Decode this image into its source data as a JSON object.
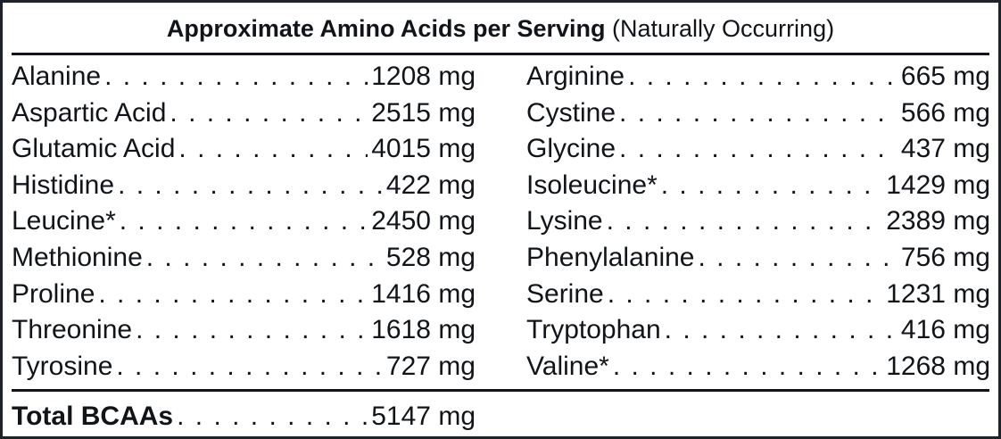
{
  "title": {
    "bold": "Approximate Amino Acids per Serving",
    "normal": "(Naturally Occurring)"
  },
  "left": [
    {
      "name": "Alanine",
      "value": "1208 mg"
    },
    {
      "name": "Aspartic Acid",
      "value": "2515 mg"
    },
    {
      "name": "Glutamic Acid",
      "value": "4015 mg"
    },
    {
      "name": "Histidine",
      "value": "422 mg"
    },
    {
      "name": "Leucine*",
      "value": "2450 mg"
    },
    {
      "name": "Methionine",
      "value": "528 mg"
    },
    {
      "name": "Proline",
      "value": "1416 mg"
    },
    {
      "name": "Threonine",
      "value": "1618 mg"
    },
    {
      "name": "Tyrosine",
      "value": "727 mg"
    }
  ],
  "right": [
    {
      "name": "Arginine",
      "value": "665 mg"
    },
    {
      "name": "Cystine",
      "value": "566 mg"
    },
    {
      "name": "Glycine",
      "value": "437 mg"
    },
    {
      "name": "Isoleucine*",
      "value": "1429 mg"
    },
    {
      "name": "Lysine",
      "value": "2389 mg"
    },
    {
      "name": "Phenylalanine",
      "value": "756 mg"
    },
    {
      "name": "Serine",
      "value": "1231 mg"
    },
    {
      "name": "Tryptophan",
      "value": "416 mg"
    },
    {
      "name": "Valine*",
      "value": "1268 mg"
    }
  ],
  "total": {
    "name": "Total BCAAs",
    "value": "5147 mg"
  }
}
